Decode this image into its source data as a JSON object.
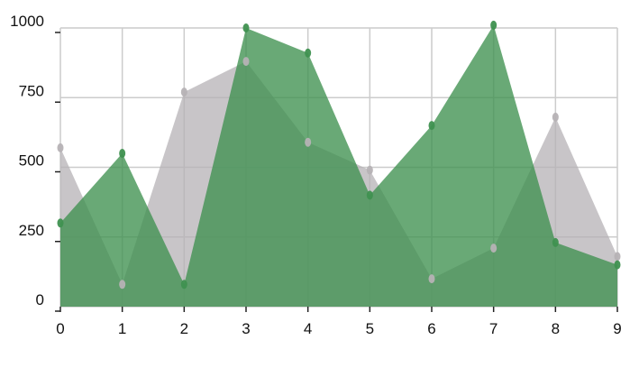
{
  "chart_data": {
    "type": "area",
    "title": "",
    "xlabel": "",
    "ylabel": "",
    "x": [
      0,
      1,
      2,
      3,
      4,
      5,
      6,
      7,
      8,
      9
    ],
    "xlim": [
      0,
      9
    ],
    "ylim": [
      0,
      1000
    ],
    "x_ticks": [
      "0",
      "1",
      "2",
      "3",
      "4",
      "5",
      "6",
      "7",
      "8",
      "9"
    ],
    "y_ticks": [
      "0",
      "250",
      "500",
      "750",
      "1000"
    ],
    "y_tick_values": [
      0,
      250,
      500,
      750,
      1000
    ],
    "grid": true,
    "legend": "none",
    "series": [
      {
        "values": [
          570,
          80,
          770,
          880,
          590,
          490,
          100,
          210,
          680,
          180
        ],
        "color": "#b6b2b5",
        "opacity": 0.75
      },
      {
        "values": [
          300,
          550,
          80,
          1000,
          910,
          400,
          650,
          1010,
          230,
          150
        ],
        "color": "#3f9150",
        "opacity": 0.78
      }
    ]
  }
}
